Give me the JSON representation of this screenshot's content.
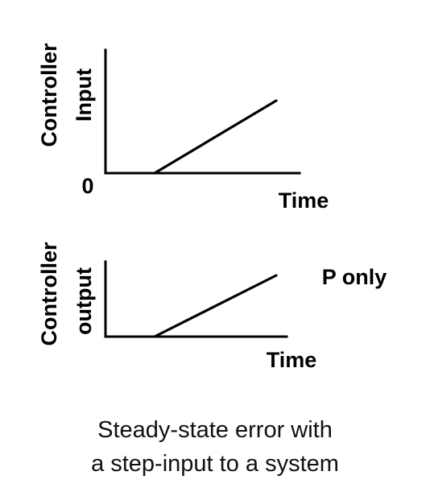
{
  "top_plot": {
    "ylabel_line1": "Controller",
    "ylabel_line2": "Input",
    "origin_label": "0",
    "xlabel": "Time"
  },
  "bottom_plot": {
    "ylabel_line1": "Controller",
    "ylabel_line2": "output",
    "xlabel": "Time",
    "annotation": "P only"
  },
  "caption": {
    "line1": "Steady-state error with",
    "line2": "a step-input to a system"
  }
}
